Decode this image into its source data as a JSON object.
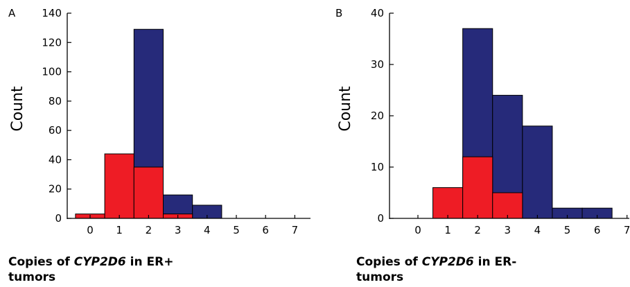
{
  "colors": {
    "blue": "#262a7a",
    "red": "#ee1c25"
  },
  "captions": [
    {
      "pre": "Copies of ",
      "gene": "CYP2D6",
      "post": " in ER+",
      "line2": "tumors"
    },
    {
      "pre": "Copies of ",
      "gene": "CYP2D6",
      "post": " in ER-",
      "line2": "tumors"
    }
  ],
  "chart_data": [
    {
      "type": "bar",
      "panel_label": "A",
      "ylabel": "Count",
      "categories": [
        "0",
        "1",
        "2",
        "3",
        "4",
        "5",
        "6",
        "7"
      ],
      "ylim": [
        0,
        140
      ],
      "yticks": [
        0,
        20,
        40,
        60,
        80,
        100,
        120,
        140
      ],
      "series": [
        {
          "color": "blue",
          "values": [
            0,
            0,
            129,
            16,
            9,
            0,
            0,
            0
          ]
        },
        {
          "color": "red",
          "values": [
            3,
            44,
            35,
            3,
            0,
            0,
            0,
            0
          ]
        }
      ]
    },
    {
      "type": "bar",
      "panel_label": "B",
      "ylabel": "Count",
      "categories": [
        "0",
        "1",
        "2",
        "3",
        "4",
        "5",
        "6",
        "7"
      ],
      "ylim": [
        0,
        40
      ],
      "yticks": [
        0,
        10,
        20,
        30,
        40
      ],
      "series": [
        {
          "color": "blue",
          "values": [
            0,
            0,
            37,
            24,
            18,
            2,
            2,
            0
          ]
        },
        {
          "color": "red",
          "values": [
            0,
            6,
            12,
            5,
            0,
            0,
            0,
            0
          ]
        }
      ]
    }
  ]
}
